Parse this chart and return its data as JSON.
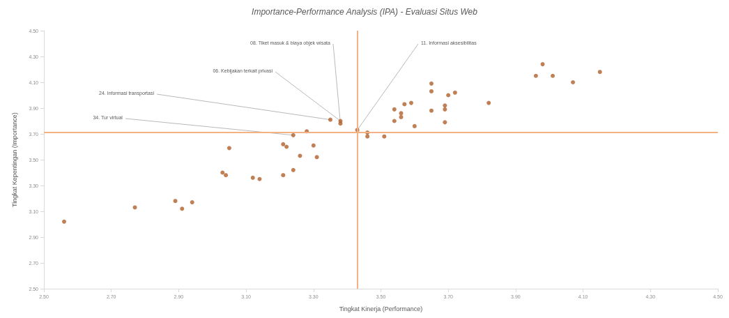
{
  "chart_data": {
    "type": "scatter",
    "title": "Importance-Performance Analysis (IPA) - Evaluasi Situs Web",
    "xlabel": "Tingkat Kinerja (Performance)",
    "ylabel": "Tingkat Kepentingan (Importance)",
    "x": [
      2.56,
      2.77,
      2.89,
      2.91,
      2.94,
      3.03,
      3.04,
      3.05,
      3.12,
      3.14,
      3.21,
      3.21,
      3.22,
      3.24,
      3.24,
      3.26,
      3.28,
      3.3,
      3.31,
      3.35,
      3.38,
      3.38,
      3.43,
      3.46,
      3.46,
      3.51,
      3.54,
      3.54,
      3.56,
      3.56,
      3.57,
      3.59,
      3.6,
      3.65,
      3.65,
      3.65,
      3.69,
      3.69,
      3.69,
      3.7,
      3.72,
      3.82,
      3.96,
      3.98,
      4.01,
      4.07,
      4.15
    ],
    "values": [
      3.02,
      3.13,
      3.18,
      3.12,
      3.17,
      3.4,
      3.38,
      3.59,
      3.36,
      3.35,
      3.38,
      3.62,
      3.6,
      3.69,
      3.42,
      3.53,
      3.72,
      3.61,
      3.52,
      3.81,
      3.8,
      3.78,
      3.73,
      3.71,
      3.68,
      3.68,
      3.8,
      3.89,
      3.86,
      3.83,
      3.93,
      3.94,
      3.76,
      4.09,
      4.03,
      3.88,
      3.92,
      3.89,
      3.79,
      4.0,
      4.02,
      3.94,
      4.15,
      4.24,
      4.15,
      4.1,
      4.18
    ],
    "color": "#b0602c",
    "marker": "circle",
    "xlim": [
      2.5,
      4.5
    ],
    "xticks": [
      {
        "value": 2.5,
        "label": "2.50"
      },
      {
        "value": 2.7,
        "label": "2.70"
      },
      {
        "value": 2.9,
        "label": "2.90"
      },
      {
        "value": 3.1,
        "label": "3.10"
      },
      {
        "value": 3.3,
        "label": "3.30"
      },
      {
        "value": 3.5,
        "label": "3.50"
      },
      {
        "value": 3.7,
        "label": "3.70"
      },
      {
        "value": 3.9,
        "label": "3.90"
      },
      {
        "value": 4.1,
        "label": "4.10"
      },
      {
        "value": 4.3,
        "label": "4.30"
      },
      {
        "value": 4.5,
        "label": "4.50"
      }
    ],
    "ylim": [
      2.5,
      4.5
    ],
    "yticks": [
      {
        "value": 2.5,
        "label": "2.50"
      },
      {
        "value": 2.7,
        "label": "2.70"
      },
      {
        "value": 2.9,
        "label": "2.90"
      },
      {
        "value": 3.1,
        "label": "3.10"
      },
      {
        "value": 3.3,
        "label": "3.30"
      },
      {
        "value": 3.5,
        "label": "3.50"
      },
      {
        "value": 3.7,
        "label": "3.70"
      },
      {
        "value": 3.9,
        "label": "3.90"
      },
      {
        "value": 4.1,
        "label": "4.10"
      },
      {
        "value": 4.3,
        "label": "4.30"
      },
      {
        "value": 4.5,
        "label": "4.50"
      }
    ],
    "grid": false,
    "ref_lines": [
      {
        "axis": "x",
        "value": 3.43,
        "color": "#f4b183"
      },
      {
        "axis": "y",
        "value": 3.71,
        "color": "#f4b183"
      }
    ],
    "annotations": [
      {
        "text": "08. Tiket masuk & biaya objek wisata",
        "x": 3.38,
        "y": 3.78
      },
      {
        "text": "06. Kebijakan terkait privasi",
        "x": 3.38,
        "y": 3.8
      },
      {
        "text": "24. Informasi transportasi",
        "x": 3.35,
        "y": 3.81
      },
      {
        "text": "34. Tur virtual",
        "x": 3.24,
        "y": 3.69
      },
      {
        "text": "11. Informasi aksesibilitas",
        "x": 3.43,
        "y": 3.73
      }
    ]
  }
}
